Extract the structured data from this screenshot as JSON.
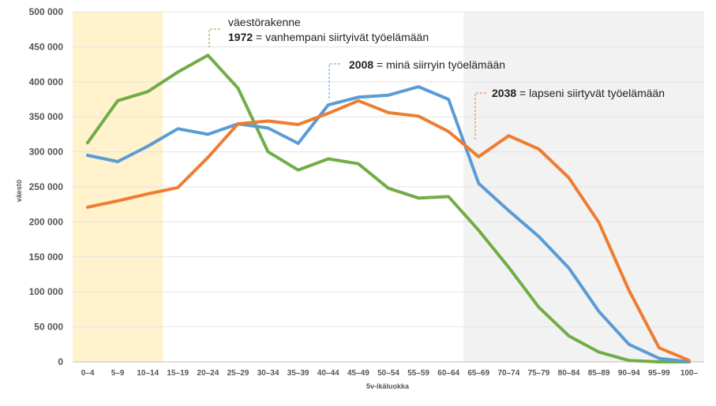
{
  "chart_data": {
    "type": "line",
    "title": "",
    "xlabel": "5v-ikäluokka",
    "ylabel": "väestö",
    "ylim": [
      0,
      500000
    ],
    "yticks": [
      0,
      50000,
      100000,
      150000,
      200000,
      250000,
      300000,
      350000,
      400000,
      450000,
      500000
    ],
    "ytick_labels": [
      "0",
      "50 000",
      "100 000",
      "150 000",
      "200 000",
      "250 000",
      "300 000",
      "350 000",
      "400 000",
      "450 000",
      "500 000"
    ],
    "grid": true,
    "categories": [
      "0–4",
      "5–9",
      "10–14",
      "15–19",
      "20–24",
      "25–29",
      "30–34",
      "35–39",
      "40–44",
      "45–49",
      "50–54",
      "55–59",
      "60–64",
      "65–69",
      "70–74",
      "75–79",
      "80–84",
      "85–89",
      "90–94",
      "95–99",
      "100–"
    ],
    "series": [
      {
        "name": "1972",
        "color": "#70AD47",
        "values": [
          313000,
          373000,
          386000,
          414000,
          438000,
          391000,
          300000,
          274000,
          290000,
          283000,
          248000,
          234000,
          236000,
          188000,
          135000,
          78000,
          37000,
          14000,
          2000,
          0,
          0
        ]
      },
      {
        "name": "2008",
        "color": "#5B9BD5",
        "values": [
          295000,
          286000,
          308000,
          333000,
          325000,
          340000,
          334000,
          312000,
          367000,
          378000,
          381000,
          393000,
          375000,
          255000,
          216000,
          179000,
          134000,
          72000,
          25000,
          5000,
          0
        ]
      },
      {
        "name": "2038",
        "color": "#ED7D31",
        "values": [
          221000,
          230000,
          240000,
          249000,
          292000,
          340000,
          344000,
          339000,
          355000,
          373000,
          356000,
          351000,
          329000,
          293000,
          323000,
          304000,
          263000,
          199000,
          102000,
          20000,
          2000
        ]
      }
    ],
    "shaded_ranges": [
      {
        "from": "0–4",
        "to": "10–14",
        "color": "#FFF2CC"
      },
      {
        "from": "65–69",
        "to": "100–",
        "color": "#F2F2F2"
      }
    ],
    "annotations": [
      {
        "series": "1972",
        "lines": [
          {
            "text": "väestörakenne"
          },
          {
            "bold": "1972",
            "text": " = vanhempani siirtyivät työelämään"
          }
        ]
      },
      {
        "series": "2008",
        "lines": [
          {
            "bold": "2008",
            "text": " = minä siirryin työelämään"
          }
        ]
      },
      {
        "series": "2038",
        "lines": [
          {
            "bold": "2038",
            "text": " = lapseni siirtyvät työelämään"
          }
        ]
      }
    ]
  }
}
